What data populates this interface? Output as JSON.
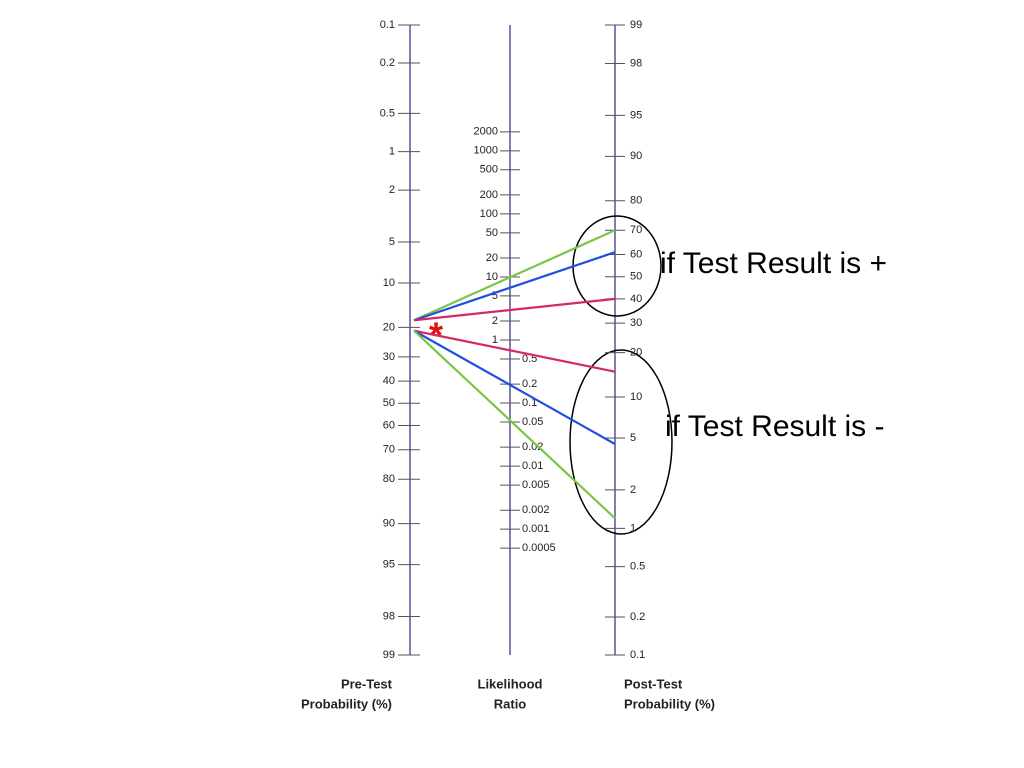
{
  "pre_test": {
    "title": [
      "Pre-Test",
      "Probability (%)"
    ],
    "ticks": [
      0.1,
      0.2,
      0.5,
      1,
      2,
      5,
      10,
      20,
      30,
      40,
      50,
      60,
      70,
      80,
      90,
      95,
      98,
      99
    ]
  },
  "likelihood_ratio": {
    "title": [
      "Likelihood",
      "Ratio"
    ],
    "ticks": [
      2000,
      1000,
      500,
      200,
      100,
      50,
      20,
      10,
      5,
      2,
      1,
      0.5,
      0.2,
      0.1,
      0.05,
      0.02,
      0.01,
      0.005,
      0.002,
      0.001,
      0.0005
    ]
  },
  "post_test": {
    "title": [
      "Post-Test",
      "Probability (%)"
    ],
    "ticks": [
      99,
      98,
      95,
      90,
      80,
      70,
      60,
      50,
      40,
      30,
      20,
      10,
      5,
      2,
      1,
      0.5,
      0.2,
      0.1
    ]
  },
  "lines": [
    {
      "color": "#7cc444",
      "pre": 18,
      "post": 70
    },
    {
      "color": "#1f4fe0",
      "pre": 18,
      "post": 61
    },
    {
      "color": "#d42a64",
      "pre": 18,
      "post": 40
    },
    {
      "color": "#d42a64",
      "pre": 21,
      "post": 15
    },
    {
      "color": "#1f4fe0",
      "pre": 21,
      "post": 4.5
    },
    {
      "color": "#7cc444",
      "pre": 21,
      "post": 1.2
    }
  ],
  "annotations": [
    "if Test Result is +",
    "if Test Result is -"
  ]
}
